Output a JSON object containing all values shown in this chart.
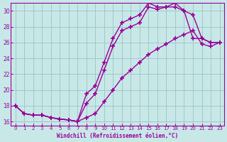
{
  "background_color": "#c8e8e8",
  "grid_color": "#a0c8c8",
  "line_color": "#990099",
  "marker": "+",
  "markersize": 4,
  "markeredgewidth": 1.2,
  "linewidth": 1.0,
  "xlabel": "Windchill (Refroidissement éolien,°C)",
  "xlabel_color": "#990099",
  "xlim": [
    -0.5,
    23.5
  ],
  "ylim": [
    15.5,
    31.0
  ],
  "yticks": [
    16,
    18,
    20,
    22,
    24,
    26,
    28,
    30
  ],
  "xticks": [
    0,
    1,
    2,
    3,
    4,
    5,
    6,
    7,
    8,
    9,
    10,
    11,
    12,
    13,
    14,
    15,
    16,
    17,
    18,
    19,
    20,
    21,
    22,
    23
  ],
  "curve1_x": [
    0,
    1,
    2,
    3,
    4,
    5,
    6,
    7,
    8,
    9,
    10,
    11,
    12,
    13,
    14,
    15,
    16,
    17,
    18,
    19,
    20,
    21,
    22,
    23
  ],
  "curve1_y": [
    18.0,
    17.0,
    16.8,
    16.8,
    16.5,
    16.3,
    16.2,
    16.0,
    19.5,
    20.5,
    23.5,
    26.5,
    28.5,
    29.0,
    29.5,
    31.0,
    30.5,
    30.5,
    30.5,
    30.0,
    26.5,
    26.5,
    26.0,
    26.0
  ],
  "curve2_x": [
    0,
    1,
    2,
    3,
    4,
    5,
    6,
    7,
    8,
    9,
    10,
    11,
    12,
    13,
    14,
    15,
    16,
    17,
    18,
    19,
    20,
    21,
    22,
    23
  ],
  "curve2_y": [
    18.0,
    17.0,
    16.8,
    16.8,
    16.5,
    16.3,
    16.2,
    16.0,
    18.3,
    19.5,
    22.5,
    25.5,
    27.5,
    28.0,
    28.5,
    30.5,
    30.2,
    30.5,
    31.0,
    30.0,
    29.5,
    26.5,
    26.0,
    26.0
  ],
  "curve3_x": [
    0,
    1,
    2,
    3,
    4,
    5,
    6,
    7,
    8,
    9,
    10,
    11,
    12,
    13,
    14,
    15,
    16,
    17,
    18,
    19,
    20,
    21,
    22,
    23
  ],
  "curve3_y": [
    18.0,
    17.0,
    16.8,
    16.8,
    16.5,
    16.3,
    16.2,
    16.0,
    16.5,
    17.0,
    18.5,
    20.0,
    21.5,
    22.5,
    23.5,
    24.5,
    25.2,
    25.8,
    26.5,
    27.0,
    27.5,
    25.8,
    25.5,
    26.0
  ]
}
